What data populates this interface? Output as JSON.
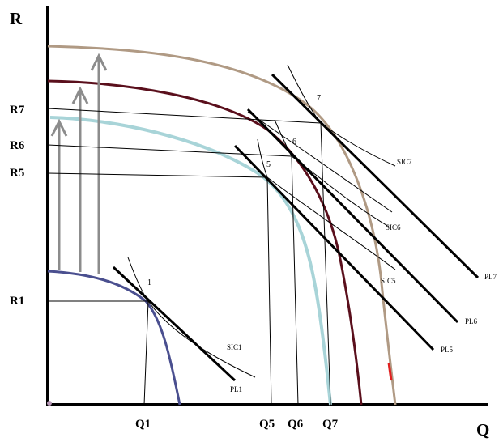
{
  "axes": {
    "y_label": "R",
    "x_label": "Q"
  },
  "y_ticks": [
    "R7",
    "R6",
    "R5",
    "R1"
  ],
  "x_ticks": [
    "Q1",
    "Q5",
    "Q6",
    "Q7"
  ],
  "points": [
    "1",
    "5",
    "6",
    "7"
  ],
  "isocost_labels": [
    "SIC1",
    "SIC5",
    "SIC6",
    "SIC7"
  ],
  "price_line_labels": [
    "PL1",
    "PL5",
    "PL6",
    "PL7"
  ],
  "colors": {
    "curve_1": "#4a4f8f",
    "curve_5": "#a8d4d8",
    "curve_6": "#5a0f1c",
    "curve_7": "#b09a84",
    "shift_arrows": "#8c8c8c",
    "lines": "#000000",
    "accent_red": "#e02020"
  }
}
